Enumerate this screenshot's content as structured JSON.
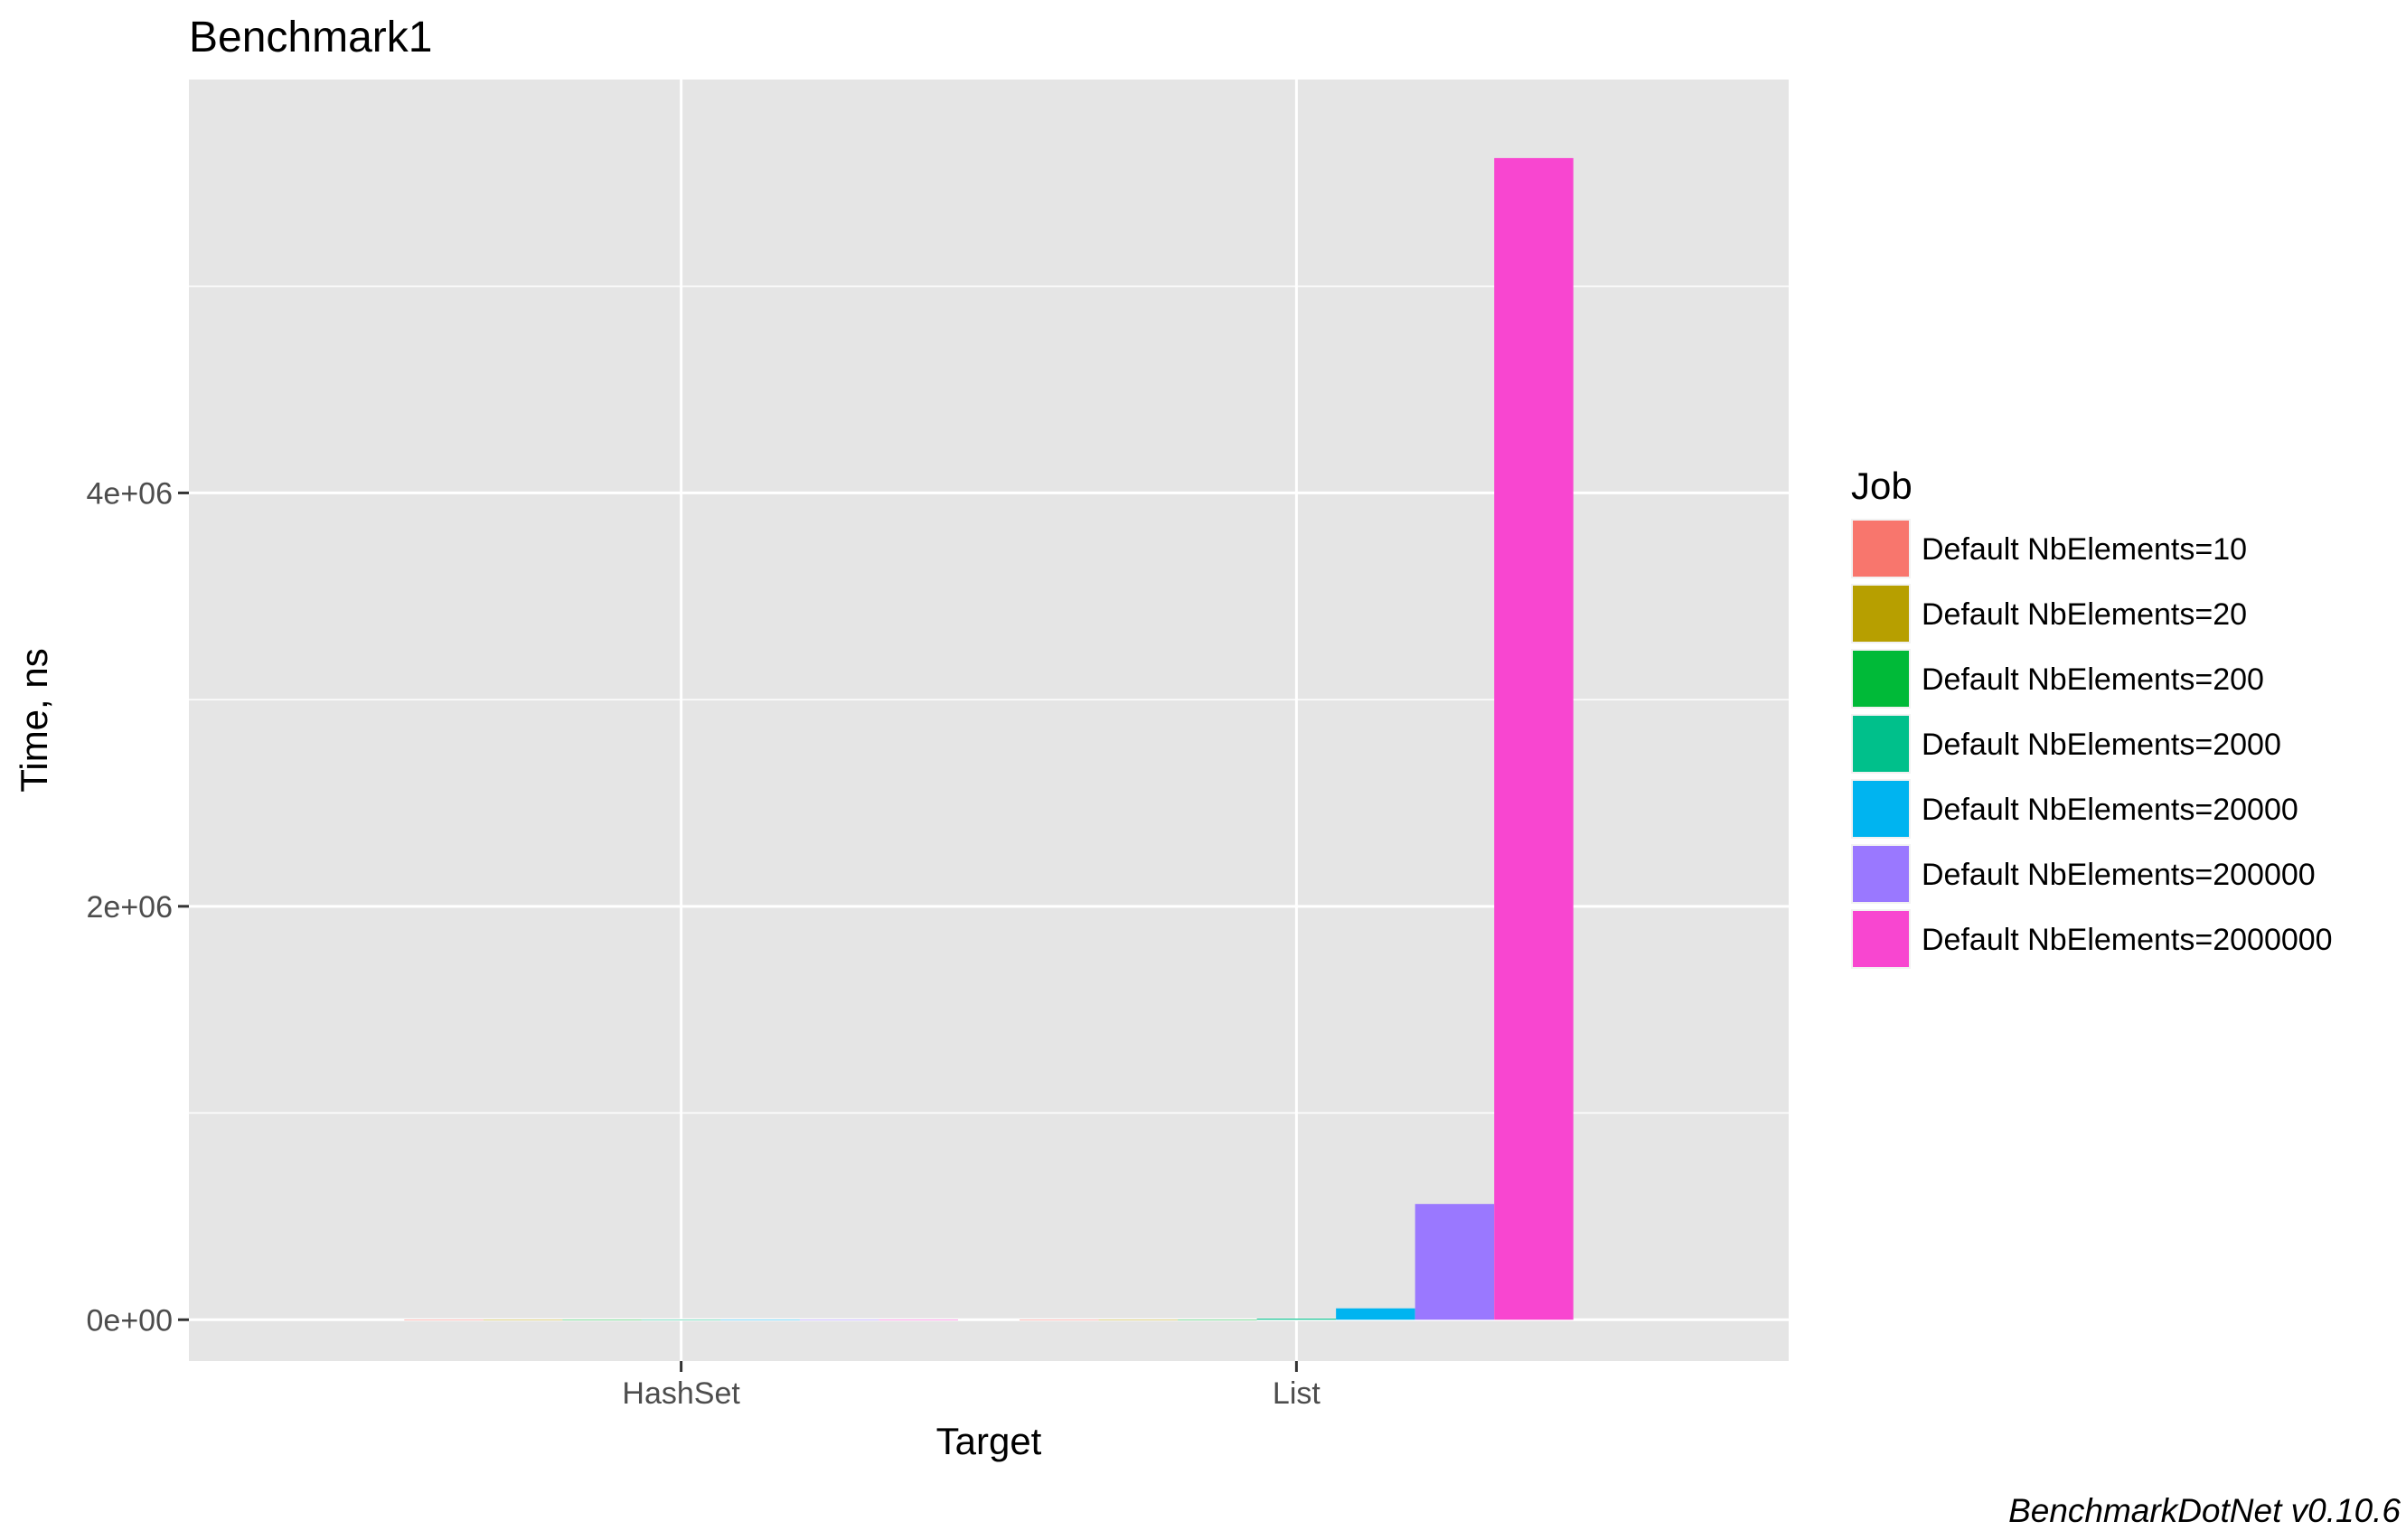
{
  "chart_data": {
    "type": "bar",
    "title": "Benchmark1",
    "xlabel": "Target",
    "ylabel": "Time, ns",
    "caption": "BenchmarkDotNet v0.10.6",
    "categories": [
      "HashSet",
      "List"
    ],
    "ylim": [
      -200000,
      6000000
    ],
    "y_ticks": [
      0,
      2000000,
      4000000
    ],
    "y_tick_labels": [
      "0e+00",
      "2e+06",
      "4e+06"
    ],
    "grid": true,
    "legend": {
      "title": "Job",
      "position": "right"
    },
    "series": [
      {
        "name": "Default NbElements=10",
        "color": "#F8766D",
        "values": [
          0,
          0
        ]
      },
      {
        "name": "Default NbElements=20",
        "color": "#B79F00",
        "values": [
          0,
          0
        ]
      },
      {
        "name": "Default NbElements=200",
        "color": "#00BA38",
        "values": [
          0,
          0
        ]
      },
      {
        "name": "Default NbElements=2000",
        "color": "#00C08B",
        "values": [
          0,
          5000
        ]
      },
      {
        "name": "Default NbElements=20000",
        "color": "#00B4F0",
        "values": [
          0,
          55000
        ]
      },
      {
        "name": "Default NbElements=200000",
        "color": "#9A78FF",
        "values": [
          0,
          560000
        ]
      },
      {
        "name": "Default NbElements=2000000",
        "color": "#F846D0",
        "values": [
          0,
          5620000
        ]
      }
    ],
    "colors": {
      "panel": "#E5E5E5",
      "gridline": "#FFFFFF",
      "text": "#000000",
      "tick_text": "#4D4D4D",
      "tick_mark": "#333333"
    }
  }
}
